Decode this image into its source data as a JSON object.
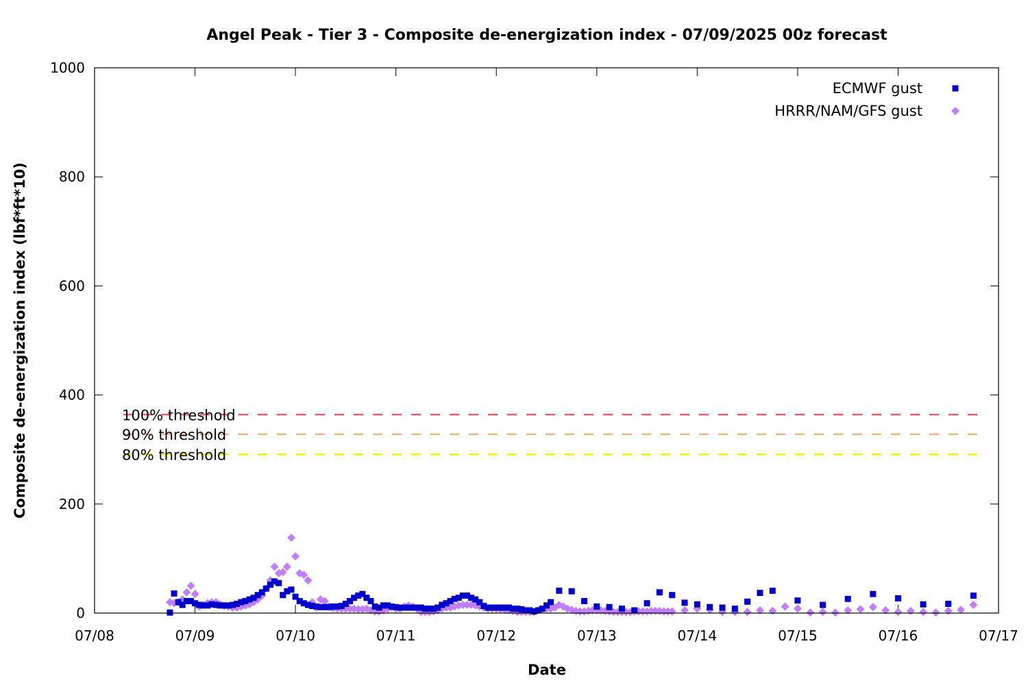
{
  "chart_data": {
    "type": "scatter",
    "title": "Angel Peak - Tier 3 - Composite de-energization index - 07/09/2025 00z forecast",
    "xlabel": "Date",
    "ylabel": "Composite de-energization index (lbf*ft*10)",
    "ylim": [
      0,
      1000
    ],
    "yticks": [
      0,
      200,
      400,
      600,
      800,
      1000
    ],
    "xlim": [
      "07/08 00:00",
      "07/17 00:00"
    ],
    "xtick_labels": [
      "07/08",
      "07/09",
      "07/10",
      "07/11",
      "07/12",
      "07/13",
      "07/14",
      "07/15",
      "07/16",
      "07/17"
    ],
    "grid": false,
    "legend_position": "top-right",
    "series": [
      {
        "name": "ECMWF gust",
        "color": "#0000cc",
        "marker": "square",
        "points": [
          [
            "07/08 18:00",
            1
          ],
          [
            "07/08 19:00",
            36
          ],
          [
            "07/08 20:00",
            20
          ],
          [
            "07/08 21:00",
            15
          ],
          [
            "07/08 22:00",
            22
          ],
          [
            "07/08 23:00",
            22
          ],
          [
            "07/09 00:00",
            18
          ],
          [
            "07/09 01:00",
            15
          ],
          [
            "07/09 02:00",
            14
          ],
          [
            "07/09 03:00",
            14
          ],
          [
            "07/09 04:00",
            16
          ],
          [
            "07/09 05:00",
            15
          ],
          [
            "07/09 06:00",
            14
          ],
          [
            "07/09 07:00",
            14
          ],
          [
            "07/09 08:00",
            14
          ],
          [
            "07/09 09:00",
            15
          ],
          [
            "07/09 10:00",
            17
          ],
          [
            "07/09 11:00",
            20
          ],
          [
            "07/09 12:00",
            22
          ],
          [
            "07/09 13:00",
            25
          ],
          [
            "07/09 14:00",
            28
          ],
          [
            "07/09 15:00",
            33
          ],
          [
            "07/09 16:00",
            38
          ],
          [
            "07/09 17:00",
            45
          ],
          [
            "07/09 18:00",
            52
          ],
          [
            "07/09 19:00",
            58
          ],
          [
            "07/09 20:00",
            55
          ],
          [
            "07/09 21:00",
            33
          ],
          [
            "07/09 22:00",
            40
          ],
          [
            "07/09 23:00",
            43
          ],
          [
            "07/10 00:00",
            30
          ],
          [
            "07/10 01:00",
            22
          ],
          [
            "07/10 02:00",
            18
          ],
          [
            "07/10 03:00",
            15
          ],
          [
            "07/10 04:00",
            13
          ],
          [
            "07/10 05:00",
            12
          ],
          [
            "07/10 06:00",
            11
          ],
          [
            "07/10 07:00",
            11
          ],
          [
            "07/10 08:00",
            11
          ],
          [
            "07/10 09:00",
            12
          ],
          [
            "07/10 10:00",
            12
          ],
          [
            "07/10 11:00",
            13
          ],
          [
            "07/10 12:00",
            17
          ],
          [
            "07/10 13:00",
            22
          ],
          [
            "07/10 14:00",
            28
          ],
          [
            "07/10 15:00",
            32
          ],
          [
            "07/10 16:00",
            35
          ],
          [
            "07/10 17:00",
            28
          ],
          [
            "07/10 18:00",
            22
          ],
          [
            "07/10 19:00",
            12
          ],
          [
            "07/10 20:00",
            10
          ],
          [
            "07/10 21:00",
            14
          ],
          [
            "07/10 22:00",
            14
          ],
          [
            "07/10 23:00",
            12
          ],
          [
            "07/11 00:00",
            11
          ],
          [
            "07/11 01:00",
            10
          ],
          [
            "07/11 02:00",
            10
          ],
          [
            "07/11 03:00",
            10
          ],
          [
            "07/11 04:00",
            10
          ],
          [
            "07/11 05:00",
            10
          ],
          [
            "07/11 06:00",
            10
          ],
          [
            "07/11 07:00",
            8
          ],
          [
            "07/11 08:00",
            8
          ],
          [
            "07/11 09:00",
            8
          ],
          [
            "07/11 10:00",
            10
          ],
          [
            "07/11 11:00",
            15
          ],
          [
            "07/11 12:00",
            18
          ],
          [
            "07/11 13:00",
            22
          ],
          [
            "07/11 14:00",
            26
          ],
          [
            "07/11 15:00",
            28
          ],
          [
            "07/11 16:00",
            32
          ],
          [
            "07/11 17:00",
            32
          ],
          [
            "07/11 18:00",
            28
          ],
          [
            "07/11 19:00",
            25
          ],
          [
            "07/11 20:00",
            20
          ],
          [
            "07/11 21:00",
            13
          ],
          [
            "07/11 22:00",
            10
          ],
          [
            "07/11 23:00",
            10
          ],
          [
            "07/12 00:00",
            10
          ],
          [
            "07/12 01:00",
            10
          ],
          [
            "07/12 02:00",
            10
          ],
          [
            "07/12 03:00",
            10
          ],
          [
            "07/12 04:00",
            8
          ],
          [
            "07/12 05:00",
            8
          ],
          [
            "07/12 06:00",
            7
          ],
          [
            "07/12 07:00",
            5
          ],
          [
            "07/12 08:00",
            5
          ],
          [
            "07/12 09:00",
            3
          ],
          [
            "07/12 10:00",
            5
          ],
          [
            "07/12 11:00",
            8
          ],
          [
            "07/12 12:00",
            14
          ],
          [
            "07/12 13:00",
            20
          ],
          [
            "07/12 15:00",
            41
          ],
          [
            "07/12 18:00",
            40
          ],
          [
            "07/12 21:00",
            22
          ],
          [
            "07/13 00:00",
            12
          ],
          [
            "07/13 03:00",
            11
          ],
          [
            "07/13 06:00",
            8
          ],
          [
            "07/13 09:00",
            5
          ],
          [
            "07/13 12:00",
            18
          ],
          [
            "07/13 15:00",
            38
          ],
          [
            "07/13 18:00",
            33
          ],
          [
            "07/13 21:00",
            19
          ],
          [
            "07/14 00:00",
            16
          ],
          [
            "07/14 03:00",
            11
          ],
          [
            "07/14 06:00",
            10
          ],
          [
            "07/14 09:00",
            8
          ],
          [
            "07/14 12:00",
            21
          ],
          [
            "07/14 15:00",
            37
          ],
          [
            "07/14 18:00",
            41
          ],
          [
            "07/15 00:00",
            23
          ],
          [
            "07/15 06:00",
            15
          ],
          [
            "07/15 12:00",
            26
          ],
          [
            "07/15 18:00",
            35
          ],
          [
            "07/16 00:00",
            27
          ],
          [
            "07/16 06:00",
            16
          ],
          [
            "07/16 12:00",
            17
          ],
          [
            "07/16 18:00",
            32
          ]
        ]
      },
      {
        "name": "HRRR/NAM/GFS gust",
        "color": "#bf7fff",
        "marker": "diamond",
        "points": [
          [
            "07/08 18:00",
            20
          ],
          [
            "07/08 19:00",
            18
          ],
          [
            "07/08 20:00",
            20
          ],
          [
            "07/08 21:00",
            25
          ],
          [
            "07/08 22:00",
            38
          ],
          [
            "07/08 23:00",
            50
          ],
          [
            "07/09 00:00",
            35
          ],
          [
            "07/09 01:00",
            12
          ],
          [
            "07/09 02:00",
            15
          ],
          [
            "07/09 03:00",
            18
          ],
          [
            "07/09 04:00",
            20
          ],
          [
            "07/09 05:00",
            20
          ],
          [
            "07/09 06:00",
            16
          ],
          [
            "07/09 07:00",
            13
          ],
          [
            "07/09 08:00",
            12
          ],
          [
            "07/09 09:00",
            10
          ],
          [
            "07/09 10:00",
            10
          ],
          [
            "07/09 11:00",
            12
          ],
          [
            "07/09 12:00",
            14
          ],
          [
            "07/09 13:00",
            16
          ],
          [
            "07/09 14:00",
            20
          ],
          [
            "07/09 15:00",
            25
          ],
          [
            "07/09 16:00",
            32
          ],
          [
            "07/09 17:00",
            45
          ],
          [
            "07/09 18:00",
            60
          ],
          [
            "07/09 19:00",
            85
          ],
          [
            "07/09 20:00",
            73
          ],
          [
            "07/09 21:00",
            75
          ],
          [
            "07/09 22:00",
            85
          ],
          [
            "07/09 23:00",
            138
          ],
          [
            "07/10 00:00",
            104
          ],
          [
            "07/10 01:00",
            73
          ],
          [
            "07/10 02:00",
            70
          ],
          [
            "07/10 03:00",
            60
          ],
          [
            "07/10 04:00",
            20
          ],
          [
            "07/10 05:00",
            10
          ],
          [
            "07/10 06:00",
            25
          ],
          [
            "07/10 07:00",
            22
          ],
          [
            "07/10 08:00",
            12
          ],
          [
            "07/10 09:00",
            9
          ],
          [
            "07/10 10:00",
            8
          ],
          [
            "07/10 11:00",
            8
          ],
          [
            "07/10 12:00",
            8
          ],
          [
            "07/10 13:00",
            8
          ],
          [
            "07/10 14:00",
            8
          ],
          [
            "07/10 15:00",
            7
          ],
          [
            "07/10 16:00",
            7
          ],
          [
            "07/10 17:00",
            8
          ],
          [
            "07/10 18:00",
            5
          ],
          [
            "07/10 19:00",
            3
          ],
          [
            "07/10 20:00",
            3
          ],
          [
            "07/10 21:00",
            5
          ],
          [
            "07/10 22:00",
            8
          ],
          [
            "07/10 23:00",
            10
          ],
          [
            "07/11 00:00",
            8
          ],
          [
            "07/11 01:00",
            8
          ],
          [
            "07/11 02:00",
            12
          ],
          [
            "07/11 03:00",
            14
          ],
          [
            "07/11 04:00",
            12
          ],
          [
            "07/11 05:00",
            8
          ],
          [
            "07/11 06:00",
            2
          ],
          [
            "07/11 07:00",
            2
          ],
          [
            "07/11 08:00",
            2
          ],
          [
            "07/11 09:00",
            3
          ],
          [
            "07/11 10:00",
            5
          ],
          [
            "07/11 11:00",
            8
          ],
          [
            "07/11 12:00",
            10
          ],
          [
            "07/11 13:00",
            10
          ],
          [
            "07/11 14:00",
            12
          ],
          [
            "07/11 15:00",
            14
          ],
          [
            "07/11 16:00",
            15
          ],
          [
            "07/11 17:00",
            15
          ],
          [
            "07/11 18:00",
            15
          ],
          [
            "07/11 19:00",
            14
          ],
          [
            "07/11 20:00",
            12
          ],
          [
            "07/11 21:00",
            10
          ],
          [
            "07/11 22:00",
            8
          ],
          [
            "07/11 23:00",
            8
          ],
          [
            "07/12 00:00",
            8
          ],
          [
            "07/12 01:00",
            7
          ],
          [
            "07/12 02:00",
            6
          ],
          [
            "07/12 03:00",
            5
          ],
          [
            "07/12 04:00",
            4
          ],
          [
            "07/12 05:00",
            2
          ],
          [
            "07/12 06:00",
            2
          ],
          [
            "07/12 07:00",
            2
          ],
          [
            "07/12 08:00",
            2
          ],
          [
            "07/12 09:00",
            2
          ],
          [
            "07/12 10:00",
            5
          ],
          [
            "07/12 11:00",
            7
          ],
          [
            "07/12 12:00",
            8
          ],
          [
            "07/12 13:00",
            8
          ],
          [
            "07/12 14:00",
            10
          ],
          [
            "07/12 15:00",
            15
          ],
          [
            "07/12 16:00",
            12
          ],
          [
            "07/12 17:00",
            8
          ],
          [
            "07/12 18:00",
            6
          ],
          [
            "07/12 19:00",
            4
          ],
          [
            "07/12 20:00",
            3
          ],
          [
            "07/12 21:00",
            3
          ],
          [
            "07/12 22:00",
            4
          ],
          [
            "07/12 23:00",
            5
          ],
          [
            "07/13 00:00",
            5
          ],
          [
            "07/13 01:00",
            5
          ],
          [
            "07/13 02:00",
            4
          ],
          [
            "07/13 03:00",
            3
          ],
          [
            "07/13 04:00",
            2
          ],
          [
            "07/13 05:00",
            2
          ],
          [
            "07/13 06:00",
            2
          ],
          [
            "07/13 07:00",
            2
          ],
          [
            "07/13 08:00",
            2
          ],
          [
            "07/13 09:00",
            3
          ],
          [
            "07/13 10:00",
            3
          ],
          [
            "07/13 11:00",
            3
          ],
          [
            "07/13 12:00",
            3
          ],
          [
            "07/13 13:00",
            4
          ],
          [
            "07/13 14:00",
            4
          ],
          [
            "07/13 15:00",
            4
          ],
          [
            "07/13 16:00",
            3
          ],
          [
            "07/13 17:00",
            3
          ],
          [
            "07/13 18:00",
            3
          ],
          [
            "07/13 21:00",
            5
          ],
          [
            "07/14 00:00",
            8
          ],
          [
            "07/14 03:00",
            6
          ],
          [
            "07/14 06:00",
            2
          ],
          [
            "07/14 09:00",
            2
          ],
          [
            "07/14 12:00",
            2
          ],
          [
            "07/14 15:00",
            5
          ],
          [
            "07/14 18:00",
            4
          ],
          [
            "07/14 21:00",
            12
          ],
          [
            "07/15 00:00",
            8
          ],
          [
            "07/15 03:00",
            1
          ],
          [
            "07/15 06:00",
            2
          ],
          [
            "07/15 09:00",
            1
          ],
          [
            "07/15 12:00",
            5
          ],
          [
            "07/15 15:00",
            7
          ],
          [
            "07/15 18:00",
            11
          ],
          [
            "07/15 21:00",
            5
          ],
          [
            "07/16 00:00",
            2
          ],
          [
            "07/16 03:00",
            4
          ],
          [
            "07/16 06:00",
            2
          ],
          [
            "07/16 09:00",
            1
          ],
          [
            "07/16 12:00",
            4
          ],
          [
            "07/16 15:00",
            6
          ],
          [
            "07/16 18:00",
            15
          ]
        ]
      }
    ],
    "thresholds": [
      {
        "label": "100% threshold",
        "value": 364,
        "color": "#e06070"
      },
      {
        "label": "90% threshold",
        "value": 328,
        "color": "#f2b07a"
      },
      {
        "label": "80% threshold",
        "value": 291,
        "color": "#f0f000"
      }
    ]
  }
}
